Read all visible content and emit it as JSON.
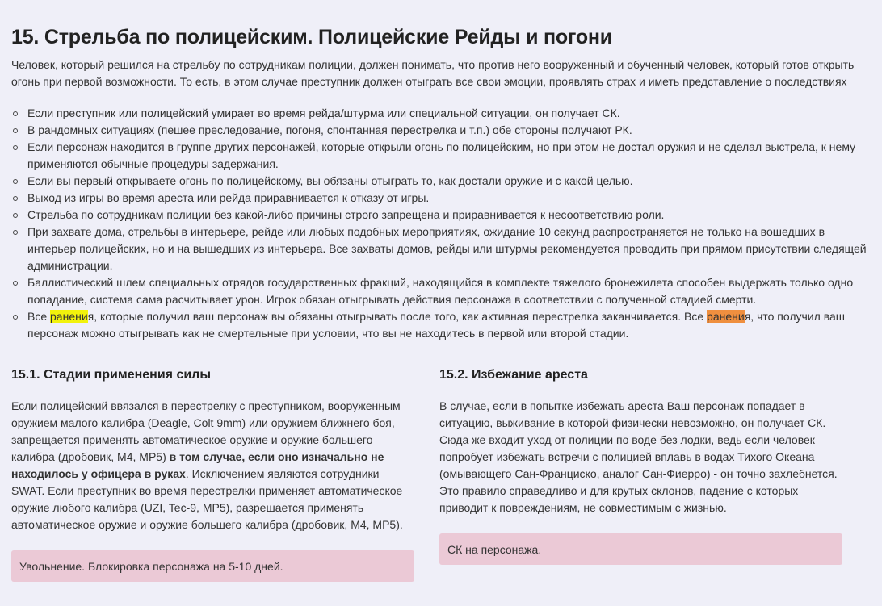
{
  "title": "15. Стрельба по полицейским. Полицейские Рейды и погони",
  "intro": "Человек, который решился на стрельбу по сотрудникам полиции, должен понимать, что против него вооруженный и обученный человек, который готов открыть огонь при первой возможности. То есть, в этом случае преступник должен отыграть все свои эмоции, проявлять страх и иметь представление о последствиях",
  "rules": [
    "Если преступник или полицейский умирает во время рейда/штурма или специальной ситуации, он получает СК.",
    "В рандомных ситуациях (пешее преследование, погоня, спонтанная перестрелка и т.п.) обе стороны получают РК.",
    "Если персонаж находится в группе других персонажей, которые открыли огонь по полицейским, но при этом не достал оружия и не сделал выстрела, к нему применяются обычные процедуры задержания.",
    "Если вы первый открываете огонь по полицейскому, вы обязаны отыграть то, как достали оружие и с какой целью.",
    "Выход из игры во время ареста или рейда приравнивается к отказу от игры.",
    "Стрельба по сотрудникам полиции без какой-либо причины строго запрещена и приравнивается к несоответствию роли.",
    "При захвате дома, стрельбы в интерьере, рейде или любых подобных мероприятиях, ожидание 10 секунд распространяется не только на вошедших в интерьер полицейских, но и на вышедших из интерьера. Все захваты домов, рейды или штурмы рекомендуется проводить при прямом присутствии следящей администрации.",
    "Баллистический шлем специальных отрядов государственных фракций, находящийся в комплекте тяжелого бронежилета способен выдержать только одно попадание, система сама расчитывает урон. Игрок обязан отыгрывать действия персонажа в соответствии с полученной стадией смерти."
  ],
  "last_rule": {
    "p1": "Все ",
    "hl1": "ранени",
    "p2": "я, которые получил ваш персонаж вы обязаны отыгрывать после того, как активная перестрелка заканчивается. Все ",
    "hl2": "ранени",
    "p3": "я, что получил ваш персонаж можно отыгрывать как не смертельные при условии, что вы не находитесь в первой или второй стадии."
  },
  "highlight_colors": {
    "yellow": "#f2f20c",
    "orange": "#ef8f3f"
  },
  "section1": {
    "heading": "15.1. Стадии применения силы",
    "text1": "Если полицейский ввязался в перестрелку с преступником, вооруженным оружием малого калибра (Deagle, Colt 9mm) или оружием ближнего боя, запрещается применять автоматическое оружие и оружие большего калибра (дробовик, M4, MP5) ",
    "bold": "в том случае, если оно изначально не находилось у офицера в руках",
    "text2": ". Исключением являются сотрудники SWAT. Если преступник во время перестрелки применяет автоматическое оружие любого калибра (UZI, Tec-9, MP5), разрешается применять автоматическое оружие и оружие большего калибра (дробовик, M4, MP5).",
    "punishment": "Увольнение. Блокировка персонажа на 5-10 дней."
  },
  "section2": {
    "heading": "15.2. Избежание ареста",
    "text": "В случае, если в попытке избежать ареста Ваш персонаж попадает в ситуацию, выживание в которой физически невозможно, он получает СК. Сюда же входит уход от полиции по воде без лодки, ведь если человек попробует избежать встречи с полицией вплавь в водах Тихого Океана (омывающего Сан-Франциско, аналог Сан-Фиерро) - он точно захлебнется. Это правило справедливо и для крутых склонов, падение с которых приводит к повреждениям, не совместимым с жизнью.",
    "punishment": "СК на персонажа."
  }
}
